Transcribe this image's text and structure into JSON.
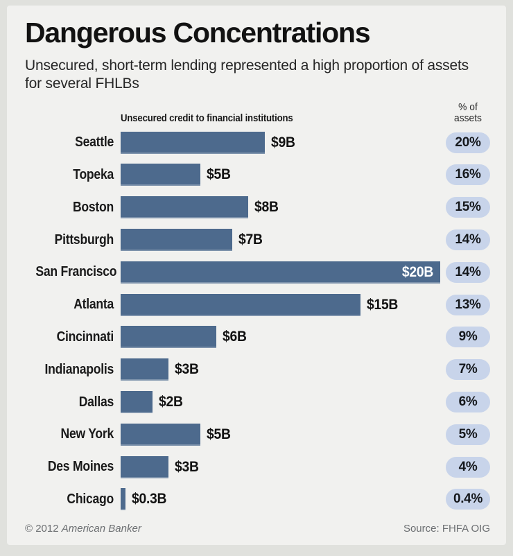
{
  "page": {
    "title": "Dangerous Concentrations",
    "subtitle": "Unsecured, short-term lending represented a high proportion of assets for several FHLBs",
    "footer": {
      "copyright_prefix": "© 2012 ",
      "copyright_brand": "American Banker",
      "source": "Source: FHFA OIG"
    }
  },
  "chart_data": {
    "type": "bar",
    "orientation": "horizontal",
    "bar_column_header": "Unsecured credit to financial institutions",
    "pct_column_header_line1": "% of",
    "pct_column_header_line2": "assets",
    "categories": [
      "Seattle",
      "Topeka",
      "Boston",
      "Pittsburgh",
      "San Francisco",
      "Atlanta",
      "Cincinnati",
      "Indianapolis",
      "Dallas",
      "New York",
      "Des Moines",
      "Chicago"
    ],
    "series": [
      {
        "name": "Unsecured credit to financial institutions ($B)",
        "values": [
          9,
          5,
          8,
          7,
          20,
          15,
          6,
          3,
          2,
          5,
          3,
          0.3
        ]
      },
      {
        "name": "% of assets",
        "values": [
          20,
          16,
          15,
          14,
          14,
          13,
          9,
          7,
          6,
          5,
          4,
          0.4
        ]
      }
    ],
    "xlim": [
      0,
      20
    ],
    "grid": false,
    "legend": "none",
    "colors": {
      "bar": "#4d6a8d",
      "bar_inside_label": "#ffffff",
      "pill_bg": "#c8d4ea",
      "pill_text": "#15181c",
      "card_bg": "#f1f1ef",
      "outer_bg": "#e0e1dd"
    },
    "rows": [
      {
        "city": "Seattle",
        "value": 9,
        "value_label": "$9B",
        "pct_label": "20%",
        "label_inside": false
      },
      {
        "city": "Topeka",
        "value": 5,
        "value_label": "$5B",
        "pct_label": "16%",
        "label_inside": false
      },
      {
        "city": "Boston",
        "value": 8,
        "value_label": "$8B",
        "pct_label": "15%",
        "label_inside": false
      },
      {
        "city": "Pittsburgh",
        "value": 7,
        "value_label": "$7B",
        "pct_label": "14%",
        "label_inside": false
      },
      {
        "city": "San Francisco",
        "value": 20,
        "value_label": "$20B",
        "pct_label": "14%",
        "label_inside": true
      },
      {
        "city": "Atlanta",
        "value": 15,
        "value_label": "$15B",
        "pct_label": "13%",
        "label_inside": false
      },
      {
        "city": "Cincinnati",
        "value": 6,
        "value_label": "$6B",
        "pct_label": "9%",
        "label_inside": false
      },
      {
        "city": "Indianapolis",
        "value": 3,
        "value_label": "$3B",
        "pct_label": "7%",
        "label_inside": false
      },
      {
        "city": "Dallas",
        "value": 2,
        "value_label": "$2B",
        "pct_label": "6%",
        "label_inside": false
      },
      {
        "city": "New York",
        "value": 5,
        "value_label": "$5B",
        "pct_label": "5%",
        "label_inside": false
      },
      {
        "city": "Des Moines",
        "value": 3,
        "value_label": "$3B",
        "pct_label": "4%",
        "label_inside": false
      },
      {
        "city": "Chicago",
        "value": 0.3,
        "value_label": "$0.3B",
        "pct_label": "0.4%",
        "label_inside": false
      }
    ]
  }
}
